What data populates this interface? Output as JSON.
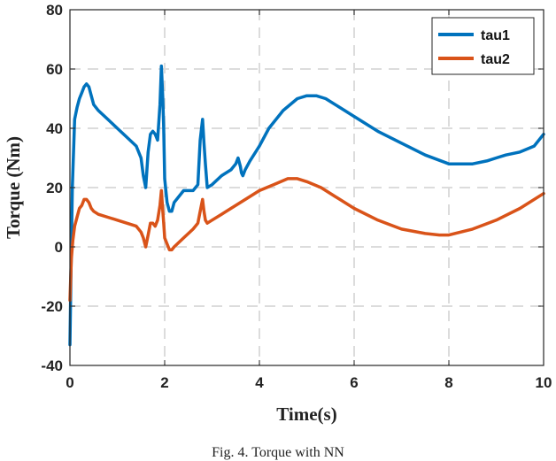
{
  "chart_data": {
    "type": "line",
    "title": "",
    "xlabel": "Time(s)",
    "ylabel": "Torque (Nm)",
    "xlim": [
      0,
      10
    ],
    "ylim": [
      -40,
      80
    ],
    "xticks": [
      0,
      2,
      4,
      6,
      8,
      10
    ],
    "yticks": [
      -40,
      -20,
      0,
      20,
      40,
      60,
      80
    ],
    "xtick_labels": [
      "0",
      "2",
      "4",
      "6",
      "8",
      "10"
    ],
    "ytick_labels": [
      "-40",
      "-20",
      "0",
      "20",
      "40",
      "60",
      "80"
    ],
    "grid": true,
    "legend_position": "top-right",
    "series": [
      {
        "name": "tau1",
        "color": "#0072BD",
        "x": [
          0,
          0.02,
          0.05,
          0.1,
          0.15,
          0.2,
          0.25,
          0.3,
          0.35,
          0.4,
          0.45,
          0.5,
          0.6,
          0.8,
          1.0,
          1.2,
          1.4,
          1.5,
          1.55,
          1.6,
          1.65,
          1.7,
          1.75,
          1.8,
          1.85,
          1.9,
          1.93,
          1.96,
          1.98,
          2.0,
          2.05,
          2.1,
          2.15,
          2.2,
          2.4,
          2.6,
          2.7,
          2.75,
          2.8,
          2.83,
          2.86,
          2.9,
          3.0,
          3.2,
          3.4,
          3.5,
          3.55,
          3.6,
          3.62,
          3.65,
          3.7,
          3.8,
          4.0,
          4.2,
          4.5,
          4.8,
          5.0,
          5.2,
          5.4,
          5.6,
          5.8,
          6.0,
          6.5,
          7.0,
          7.5,
          8.0,
          8.5,
          8.8,
          9.0,
          9.2,
          9.5,
          9.8,
          10.0
        ],
        "y": [
          -33,
          -10,
          20,
          43,
          47,
          50,
          52,
          54,
          55,
          54,
          51,
          48,
          46,
          43,
          40,
          37,
          34,
          30,
          24,
          20,
          32,
          38,
          39,
          38,
          36,
          48,
          61,
          50,
          40,
          23,
          15,
          12,
          12,
          15,
          19,
          19,
          21,
          36,
          43,
          35,
          28,
          20,
          21,
          24,
          26,
          28,
          30,
          27,
          25,
          24,
          26,
          29,
          34,
          40,
          46,
          50,
          51,
          51,
          50,
          48,
          46,
          44,
          39,
          35,
          31,
          28,
          28,
          29,
          30,
          31,
          32,
          34,
          38
        ]
      },
      {
        "name": "tau2",
        "color": "#D95319",
        "x": [
          0,
          0.03,
          0.06,
          0.1,
          0.15,
          0.2,
          0.25,
          0.3,
          0.35,
          0.4,
          0.45,
          0.5,
          0.6,
          0.8,
          1.0,
          1.2,
          1.4,
          1.5,
          1.55,
          1.6,
          1.65,
          1.7,
          1.75,
          1.8,
          1.85,
          1.9,
          1.93,
          1.96,
          1.98,
          2.0,
          2.05,
          2.1,
          2.15,
          2.2,
          2.4,
          2.6,
          2.7,
          2.75,
          2.8,
          2.83,
          2.86,
          2.9,
          3.0,
          3.2,
          3.5,
          3.8,
          4.0,
          4.3,
          4.6,
          4.8,
          5.0,
          5.3,
          5.6,
          6.0,
          6.5,
          7.0,
          7.5,
          7.8,
          8.0,
          8.5,
          9.0,
          9.5,
          10.0
        ],
        "y": [
          -18,
          -4,
          2,
          7,
          10,
          13,
          14,
          16,
          16,
          15,
          13,
          12,
          11,
          10,
          9,
          8,
          7,
          5,
          3,
          0,
          4,
          8,
          8,
          7,
          9,
          14,
          19,
          12,
          8,
          3,
          1,
          -1,
          -1,
          0,
          3,
          6,
          8,
          12,
          16,
          12,
          9,
          8,
          9,
          11,
          14,
          17,
          19,
          21,
          23,
          23,
          22,
          20,
          17,
          13,
          9,
          6,
          4.5,
          4,
          4,
          6,
          9,
          13,
          18
        ]
      }
    ]
  },
  "caption": "Fig. 4. Torque with NN"
}
